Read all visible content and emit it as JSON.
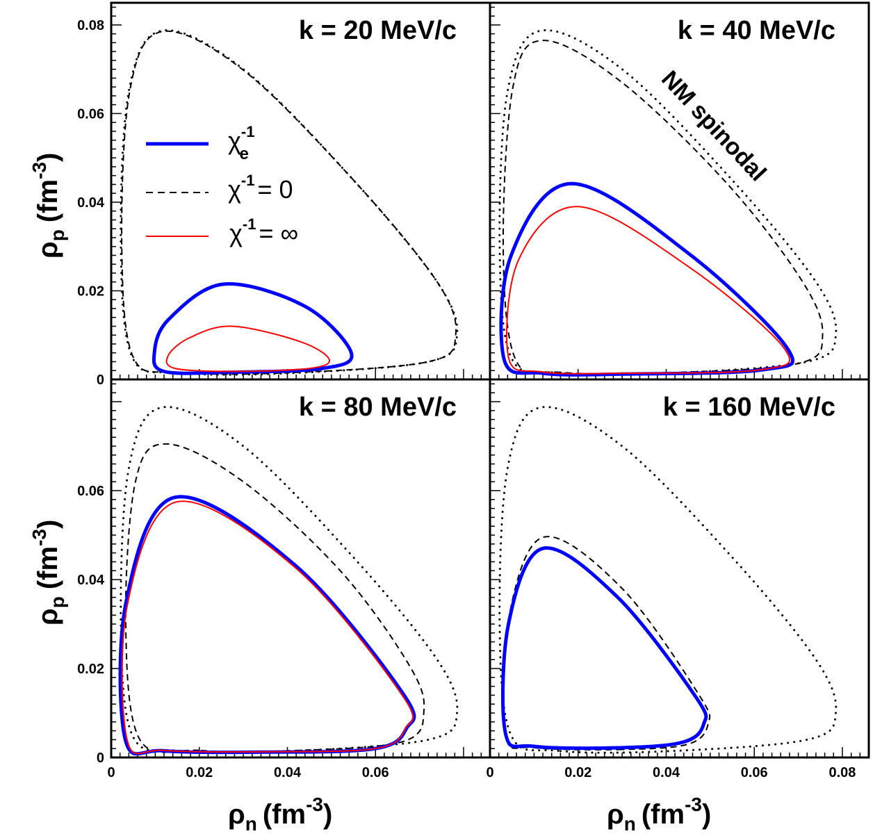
{
  "chart_data": {
    "type": "line",
    "xlabel": "ρn (fm-3)",
    "ylabel": "ρp (fm-3)",
    "axis_labels": {
      "x_symbol": "ρ",
      "x_sub": "n",
      "x_unit": "(fm",
      "x_sup": "-3",
      "x_close": ")",
      "y_symbol": "ρ",
      "y_sub": "p",
      "y_unit": "(fm",
      "y_sup": "-3",
      "y_close": ")"
    },
    "legend": {
      "placement": "top-left panel, upper-left",
      "entries": [
        {
          "key": "chi_e",
          "symbol": "χ",
          "sup": "-1",
          "sub": "e",
          "suffix": "",
          "color": "#0000ff",
          "style": "solid-thick"
        },
        {
          "key": "chi_zero",
          "symbol": "χ",
          "sup": "-1",
          "sub": "",
          "suffix": "= 0",
          "color": "#000000",
          "style": "dashed"
        },
        {
          "key": "chi_inf",
          "symbol": "χ",
          "sup": "-1",
          "sub": "",
          "suffix": "= ∞",
          "color": "#ff0000",
          "style": "solid-thin"
        }
      ]
    },
    "annotation": "NM spinodal",
    "grid": false,
    "panels": [
      {
        "title": "k = 20 MeV/c",
        "xlim": [
          0,
          0.086
        ],
        "ylim": [
          0,
          0.085
        ],
        "xticks": [],
        "yticks": [
          "0",
          "0.02",
          "0.04",
          "0.06",
          "0.08"
        ],
        "ytick_values": [
          0,
          0.02,
          0.04,
          0.06,
          0.08
        ],
        "series": [
          {
            "key": "spinodal",
            "style": "dotted",
            "color": "#000000",
            "anchors": [
              [
                0.0155,
                0.0015
              ],
              [
                0.0048,
                0.005
              ],
              [
                0.0022,
                0.03
              ],
              [
                0.004,
                0.065
              ],
              [
                0.0115,
                0.0787
              ],
              [
                0.03,
                0.07
              ],
              [
                0.055,
                0.045
              ],
              [
                0.074,
                0.022
              ],
              [
                0.0785,
                0.01
              ],
              [
                0.072,
                0.004
              ],
              [
                0.04,
                0.0014
              ]
            ]
          },
          {
            "key": "chi_zero",
            "style": "dashed",
            "color": "#000000",
            "anchors": [
              [
                0.0155,
                0.0016
              ],
              [
                0.005,
                0.005
              ],
              [
                0.0024,
                0.03
              ],
              [
                0.0042,
                0.065
              ],
              [
                0.0115,
                0.0785
              ],
              [
                0.03,
                0.0698
              ],
              [
                0.055,
                0.045
              ],
              [
                0.074,
                0.022
              ],
              [
                0.0782,
                0.01
              ],
              [
                0.072,
                0.004
              ],
              [
                0.04,
                0.0015
              ]
            ]
          },
          {
            "key": "chi_e",
            "style": "solid-thick",
            "color": "#0000ff",
            "anchors": [
              [
                0.026,
                0.0016
              ],
              [
                0.012,
                0.0018
              ],
              [
                0.0098,
                0.006
              ],
              [
                0.013,
                0.0135
              ],
              [
                0.0255,
                0.0215
              ],
              [
                0.044,
                0.0165
              ],
              [
                0.0545,
                0.006
              ],
              [
                0.048,
                0.0025
              ]
            ]
          },
          {
            "key": "chi_inf",
            "style": "solid-thin",
            "color": "#ff0000",
            "anchors": [
              [
                0.028,
                0.0018
              ],
              [
                0.0145,
                0.0025
              ],
              [
                0.013,
                0.0055
              ],
              [
                0.018,
                0.0095
              ],
              [
                0.0275,
                0.012
              ],
              [
                0.043,
                0.0085
              ],
              [
                0.0495,
                0.0045
              ],
              [
                0.045,
                0.0025
              ]
            ]
          }
        ]
      },
      {
        "title": "k = 40 MeV/c",
        "xlim": [
          0,
          0.086
        ],
        "ylim": [
          0,
          0.085
        ],
        "xticks": [],
        "yticks": [],
        "ytick_values": [],
        "series": [
          {
            "key": "spinodal",
            "style": "dotted",
            "color": "#000000",
            "anchors": [
              [
                0.0155,
                0.0015
              ],
              [
                0.0048,
                0.005
              ],
              [
                0.0022,
                0.03
              ],
              [
                0.004,
                0.065
              ],
              [
                0.0115,
                0.0787
              ],
              [
                0.03,
                0.07
              ],
              [
                0.055,
                0.045
              ],
              [
                0.074,
                0.022
              ],
              [
                0.0785,
                0.01
              ],
              [
                0.072,
                0.004
              ],
              [
                0.04,
                0.0014
              ]
            ]
          },
          {
            "key": "chi_zero",
            "style": "dashed",
            "color": "#000000",
            "anchors": [
              [
                0.016,
                0.0016
              ],
              [
                0.0058,
                0.0045
              ],
              [
                0.003,
                0.03
              ],
              [
                0.0052,
                0.066
              ],
              [
                0.012,
                0.0765
              ],
              [
                0.03,
                0.067
              ],
              [
                0.054,
                0.044
              ],
              [
                0.071,
                0.022
              ],
              [
                0.0755,
                0.01
              ],
              [
                0.07,
                0.0036
              ],
              [
                0.04,
                0.0015
              ]
            ]
          },
          {
            "key": "chi_e",
            "style": "solid-thick",
            "color": "#0000ff",
            "anchors": [
              [
                0.03,
                0.0012
              ],
              [
                0.012,
                0.0014
              ],
              [
                0.0032,
                0.0045
              ],
              [
                0.0048,
                0.028
              ],
              [
                0.0185,
                0.0442
              ],
              [
                0.045,
                0.0285
              ],
              [
                0.0675,
                0.007
              ],
              [
                0.062,
                0.0022
              ]
            ]
          },
          {
            "key": "chi_inf",
            "style": "solid-thin",
            "color": "#ff0000",
            "anchors": [
              [
                0.03,
                0.0014
              ],
              [
                0.012,
                0.0017
              ],
              [
                0.0042,
                0.005
              ],
              [
                0.0065,
                0.027
              ],
              [
                0.02,
                0.039
              ],
              [
                0.045,
                0.0255
              ],
              [
                0.0668,
                0.007
              ],
              [
                0.0615,
                0.0022
              ]
            ]
          }
        ]
      },
      {
        "title": "k = 80 MeV/c",
        "xlim": [
          0,
          0.086
        ],
        "ylim": [
          0,
          0.085
        ],
        "xticks": [
          "0",
          "0.02",
          "0.04",
          "0.06"
        ],
        "xtick_values": [
          0,
          0.02,
          0.04,
          0.06
        ],
        "yticks": [
          "0",
          "0.02",
          "0.04",
          "0.06"
        ],
        "ytick_values": [
          0,
          0.02,
          0.04,
          0.06
        ],
        "series": [
          {
            "key": "spinodal",
            "style": "dotted",
            "color": "#000000",
            "anchors": [
              [
                0.0155,
                0.0015
              ],
              [
                0.0048,
                0.005
              ],
              [
                0.0022,
                0.03
              ],
              [
                0.004,
                0.065
              ],
              [
                0.0115,
                0.0787
              ],
              [
                0.03,
                0.07
              ],
              [
                0.055,
                0.045
              ],
              [
                0.074,
                0.022
              ],
              [
                0.0785,
                0.01
              ],
              [
                0.072,
                0.004
              ],
              [
                0.04,
                0.0014
              ]
            ]
          },
          {
            "key": "chi_zero",
            "style": "dashed",
            "color": "#000000",
            "anchors": [
              [
                0.02,
                0.0016
              ],
              [
                0.0065,
                0.004
              ],
              [
                0.0033,
                0.03
              ],
              [
                0.0055,
                0.062
              ],
              [
                0.0125,
                0.0705
              ],
              [
                0.03,
                0.062
              ],
              [
                0.052,
                0.042
              ],
              [
                0.0675,
                0.021
              ],
              [
                0.071,
                0.0105
              ],
              [
                0.066,
                0.0035
              ],
              [
                0.04,
                0.0015
              ]
            ]
          },
          {
            "key": "chi_e",
            "style": "solid-thick",
            "color": "#0000ff",
            "anchors": [
              [
                0.035,
                0.0012
              ],
              [
                0.012,
                0.0015
              ],
              [
                0.0032,
                0.004
              ],
              [
                0.0034,
                0.035
              ],
              [
                0.0145,
                0.0585
              ],
              [
                0.042,
                0.043
              ],
              [
                0.0665,
                0.014
              ],
              [
                0.067,
                0.0065
              ],
              [
                0.06,
                0.002
              ]
            ]
          },
          {
            "key": "chi_inf",
            "style": "solid-thin",
            "color": "#ff0000",
            "anchors": [
              [
                0.035,
                0.0013
              ],
              [
                0.012,
                0.0016
              ],
              [
                0.0036,
                0.004
              ],
              [
                0.0038,
                0.035
              ],
              [
                0.015,
                0.0575
              ],
              [
                0.042,
                0.0425
              ],
              [
                0.0662,
                0.0138
              ],
              [
                0.0668,
                0.0065
              ],
              [
                0.06,
                0.002
              ]
            ]
          }
        ]
      },
      {
        "title": "k = 160 MeV/c",
        "xlim": [
          0,
          0.086
        ],
        "ylim": [
          0,
          0.085
        ],
        "xticks": [
          "0",
          "0.02",
          "0.04",
          "0.06",
          "0.08"
        ],
        "xtick_values": [
          0,
          0.02,
          0.04,
          0.06,
          0.08
        ],
        "yticks": [],
        "ytick_values": [],
        "series": [
          {
            "key": "spinodal",
            "style": "dotted",
            "color": "#000000",
            "anchors": [
              [
                0.0155,
                0.0015
              ],
              [
                0.0048,
                0.005
              ],
              [
                0.0022,
                0.03
              ],
              [
                0.004,
                0.065
              ],
              [
                0.0115,
                0.0787
              ],
              [
                0.03,
                0.07
              ],
              [
                0.055,
                0.045
              ],
              [
                0.074,
                0.022
              ],
              [
                0.0785,
                0.01
              ],
              [
                0.072,
                0.004
              ],
              [
                0.04,
                0.0014
              ]
            ]
          },
          {
            "key": "chi_zero",
            "style": "dashed",
            "color": "#000000",
            "anchors": [
              [
                0.03,
                0.0018
              ],
              [
                0.01,
                0.0022
              ],
              [
                0.0035,
                0.005
              ],
              [
                0.004,
                0.03
              ],
              [
                0.012,
                0.0495
              ],
              [
                0.03,
                0.038
              ],
              [
                0.0475,
                0.014
              ],
              [
                0.0495,
                0.0075
              ],
              [
                0.045,
                0.003
              ]
            ]
          },
          {
            "key": "chi_e",
            "style": "solid-thick",
            "color": "#0000ff",
            "anchors": [
              [
                0.03,
                0.0022
              ],
              [
                0.01,
                0.0025
              ],
              [
                0.0035,
                0.0055
              ],
              [
                0.0042,
                0.03
              ],
              [
                0.012,
                0.047
              ],
              [
                0.029,
                0.036
              ],
              [
                0.0468,
                0.0135
              ],
              [
                0.0485,
                0.0075
              ],
              [
                0.044,
                0.0035
              ]
            ]
          }
        ]
      }
    ]
  }
}
